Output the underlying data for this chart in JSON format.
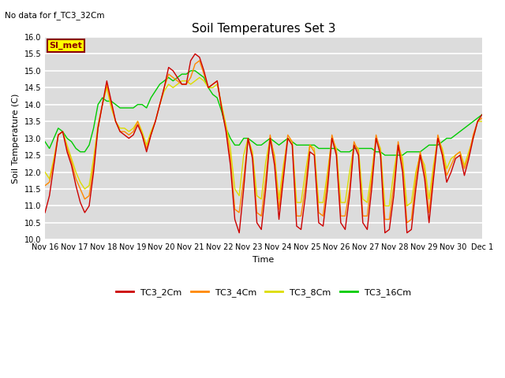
{
  "title": "Soil Temperatures Set 3",
  "subtitle": "No data for f_TC3_32Cm",
  "xlabel": "Time",
  "ylabel": "Soil Temperature (C)",
  "ylim": [
    10.0,
    16.0
  ],
  "yticks": [
    10.0,
    10.5,
    11.0,
    11.5,
    12.0,
    12.5,
    13.0,
    13.5,
    14.0,
    14.5,
    15.0,
    15.5,
    16.0
  ],
  "bg_color": "#dcdcdc",
  "fig_color": "#ffffff",
  "grid_color": "#ffffff",
  "legend_label": "SI_met",
  "legend_bg": "#ffff00",
  "legend_border": "#8b0000",
  "series_colors": {
    "TC3_2Cm": "#cc0000",
    "TC3_4Cm": "#ff8800",
    "TC3_8Cm": "#dddd00",
    "TC3_16Cm": "#00cc00"
  },
  "series_linewidth": 1.0,
  "xtick_labels": [
    "Nov 16",
    "Nov 17",
    "Nov 18",
    "Nov 19",
    "Nov 20",
    "Nov 21",
    "Nov 22",
    "Nov 23",
    "Nov 24",
    "Nov 25",
    "Nov 26",
    "Nov 27",
    "Nov 28",
    "Nov 29",
    "Nov 30",
    "Dec 1"
  ],
  "TC3_2Cm": [
    10.8,
    11.3,
    12.2,
    13.1,
    13.2,
    12.6,
    12.2,
    11.6,
    11.1,
    10.8,
    11.0,
    12.0,
    13.3,
    14.0,
    14.7,
    14.1,
    13.5,
    13.2,
    13.1,
    13.0,
    13.1,
    13.4,
    13.1,
    12.6,
    13.1,
    13.5,
    14.0,
    14.5,
    15.1,
    15.0,
    14.8,
    14.6,
    14.6,
    15.3,
    15.5,
    15.4,
    15.0,
    14.5,
    14.6,
    14.7,
    13.9,
    13.2,
    12.2,
    10.6,
    10.2,
    11.5,
    13.0,
    12.4,
    10.5,
    10.3,
    11.5,
    13.0,
    12.2,
    10.6,
    11.8,
    13.0,
    12.8,
    10.4,
    10.3,
    11.3,
    12.6,
    12.5,
    10.5,
    10.4,
    11.5,
    13.0,
    12.5,
    10.5,
    10.3,
    11.3,
    12.8,
    12.5,
    10.5,
    10.3,
    11.5,
    13.0,
    12.5,
    10.2,
    10.3,
    11.3,
    12.8,
    12.0,
    10.2,
    10.3,
    11.5,
    12.5,
    11.8,
    10.5,
    11.8,
    13.0,
    12.5,
    11.7,
    12.0,
    12.4,
    12.5,
    11.9,
    12.4,
    13.0,
    13.5,
    13.7
  ],
  "TC3_4Cm": [
    11.6,
    11.7,
    12.3,
    13.1,
    13.2,
    12.7,
    12.3,
    11.8,
    11.5,
    11.2,
    11.3,
    12.2,
    13.3,
    14.0,
    14.6,
    14.0,
    13.5,
    13.2,
    13.2,
    13.1,
    13.2,
    13.5,
    13.1,
    12.7,
    13.1,
    13.5,
    14.0,
    14.5,
    14.9,
    14.8,
    14.7,
    14.6,
    14.6,
    14.8,
    15.2,
    15.3,
    14.9,
    14.5,
    14.6,
    14.7,
    13.9,
    13.3,
    12.4,
    10.9,
    10.8,
    11.8,
    13.0,
    12.5,
    10.8,
    10.7,
    11.8,
    13.1,
    12.4,
    10.9,
    12.0,
    13.1,
    12.9,
    10.7,
    10.7,
    11.6,
    12.8,
    12.6,
    10.8,
    10.7,
    11.8,
    13.1,
    12.6,
    10.7,
    10.7,
    11.5,
    12.9,
    12.6,
    10.7,
    10.7,
    11.8,
    13.1,
    12.6,
    10.6,
    10.6,
    11.6,
    12.9,
    12.2,
    10.5,
    10.6,
    11.8,
    12.6,
    12.0,
    10.8,
    12.0,
    13.1,
    12.6,
    11.9,
    12.2,
    12.5,
    12.6,
    12.1,
    12.5,
    13.1,
    13.5,
    13.6
  ],
  "TC3_8Cm": [
    12.0,
    11.8,
    12.4,
    13.1,
    13.2,
    12.8,
    12.4,
    12.0,
    11.7,
    11.5,
    11.6,
    12.4,
    13.4,
    14.0,
    14.5,
    13.9,
    13.5,
    13.3,
    13.3,
    13.2,
    13.3,
    13.5,
    13.2,
    12.8,
    13.2,
    13.5,
    14.0,
    14.4,
    14.6,
    14.5,
    14.6,
    14.7,
    14.7,
    14.6,
    14.7,
    14.8,
    14.7,
    14.5,
    14.5,
    14.6,
    14.0,
    13.4,
    12.7,
    11.5,
    11.3,
    12.5,
    13.0,
    12.6,
    11.3,
    11.2,
    12.3,
    13.0,
    12.5,
    11.2,
    12.2,
    13.0,
    12.9,
    11.1,
    11.1,
    12.0,
    12.8,
    12.7,
    11.1,
    11.1,
    12.0,
    13.0,
    12.7,
    11.1,
    11.1,
    12.0,
    12.8,
    12.7,
    11.2,
    11.1,
    12.0,
    13.0,
    12.7,
    11.0,
    11.0,
    12.0,
    12.8,
    12.4,
    11.0,
    11.1,
    12.0,
    12.5,
    12.2,
    11.2,
    12.2,
    13.0,
    12.7,
    12.1,
    12.4,
    12.5,
    12.6,
    12.2,
    12.6,
    13.0,
    13.5,
    13.5
  ],
  "TC3_16Cm": [
    12.9,
    12.7,
    13.0,
    13.3,
    13.2,
    13.0,
    12.9,
    12.7,
    12.6,
    12.6,
    12.8,
    13.3,
    14.0,
    14.2,
    14.1,
    14.1,
    14.0,
    13.9,
    13.9,
    13.9,
    13.9,
    14.0,
    14.0,
    13.9,
    14.2,
    14.4,
    14.6,
    14.7,
    14.8,
    14.7,
    14.8,
    14.9,
    14.9,
    15.0,
    15.0,
    14.9,
    14.8,
    14.5,
    14.3,
    14.2,
    13.8,
    13.3,
    13.0,
    12.8,
    12.8,
    13.0,
    13.0,
    12.9,
    12.8,
    12.8,
    12.9,
    13.0,
    12.9,
    12.8,
    12.9,
    13.0,
    12.9,
    12.8,
    12.8,
    12.8,
    12.8,
    12.8,
    12.7,
    12.7,
    12.7,
    12.7,
    12.7,
    12.6,
    12.6,
    12.6,
    12.7,
    12.7,
    12.7,
    12.7,
    12.7,
    12.6,
    12.6,
    12.5,
    12.5,
    12.5,
    12.5,
    12.5,
    12.6,
    12.6,
    12.6,
    12.6,
    12.7,
    12.8,
    12.8,
    12.8,
    12.9,
    13.0,
    13.0,
    13.1,
    13.2,
    13.3,
    13.4,
    13.5,
    13.6,
    13.7
  ]
}
